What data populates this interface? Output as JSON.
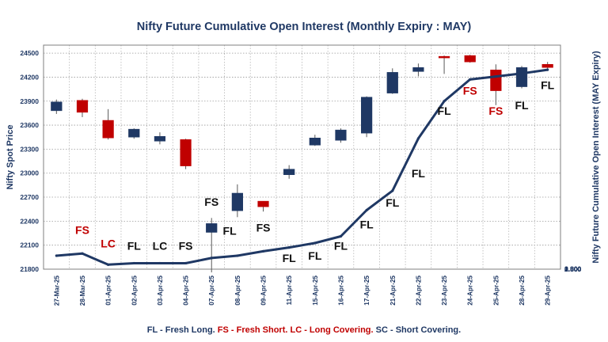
{
  "chart_data": {
    "type": "candlestick+line",
    "title": "Nifty Future Cumulative Open Interest (Monthly Expiry : MAY)",
    "ylabel_left": "Nifty Spot Price",
    "ylabel_right": "Nifty Future Cumulative Open Interest (MAY Expiry)",
    "ylim_left": [
      21800,
      24600
    ],
    "ylim_right": [
      0,
      3000
    ],
    "yticks_left": [
      "21800",
      "22100",
      "22400",
      "22700",
      "23000",
      "23300",
      "23600",
      "23900",
      "24200",
      "24500"
    ],
    "yticks_right": [
      "0.000",
      "0.500",
      "1.000",
      "1.500",
      "2.000",
      "2.500",
      "3.000"
    ],
    "categories": [
      "27-Mar-25",
      "28-Mar-25",
      "01-Apr-25",
      "02-Apr-25",
      "03-Apr-25",
      "04-Apr-25",
      "07-Apr-25",
      "08-Apr-25",
      "09-Apr-25",
      "11-Apr-25",
      "15-Apr-25",
      "16-Apr-25",
      "17-Apr-25",
      "21-Apr-25",
      "22-Apr-25",
      "23-Apr-25",
      "24-Apr-25",
      "25-Apr-25",
      "28-Apr-25",
      "29-Apr-25"
    ],
    "candles": [
      {
        "open": 23780,
        "high": 23920,
        "low": 23740,
        "close": 23890
      },
      {
        "open": 23910,
        "high": 23930,
        "low": 23700,
        "close": 23760
      },
      {
        "open": 23660,
        "high": 23800,
        "low": 23420,
        "close": 23440
      },
      {
        "open": 23450,
        "high": 23560,
        "low": 23430,
        "close": 23550
      },
      {
        "open": 23400,
        "high": 23510,
        "low": 23360,
        "close": 23460
      },
      {
        "open": 23420,
        "high": 23430,
        "low": 23050,
        "close": 23090
      },
      {
        "open": 22260,
        "high": 22440,
        "low": 21760,
        "close": 22370
      },
      {
        "open": 22530,
        "high": 22860,
        "low": 22450,
        "close": 22750
      },
      {
        "open": 22650,
        "high": 22650,
        "low": 22520,
        "close": 22580
      },
      {
        "open": 22980,
        "high": 23100,
        "low": 22930,
        "close": 23050
      },
      {
        "open": 23350,
        "high": 23480,
        "low": 23340,
        "close": 23440
      },
      {
        "open": 23410,
        "high": 23560,
        "low": 23380,
        "close": 23540
      },
      {
        "open": 23500,
        "high": 23960,
        "low": 23450,
        "close": 23950
      },
      {
        "open": 24000,
        "high": 24310,
        "low": 23990,
        "close": 24260
      },
      {
        "open": 24270,
        "high": 24370,
        "low": 24210,
        "close": 24320
      },
      {
        "open": 24460,
        "high": 24470,
        "low": 24240,
        "close": 24450
      },
      {
        "open": 24470,
        "high": 24480,
        "low": 24380,
        "close": 24390
      },
      {
        "open": 24290,
        "high": 24360,
        "low": 23850,
        "close": 24030
      },
      {
        "open": 24080,
        "high": 24340,
        "low": 24060,
        "close": 24320
      },
      {
        "open": 24360,
        "high": 24390,
        "low": 24300,
        "close": 24320
      }
    ],
    "open_interest": [
      180,
      210,
      60,
      80,
      80,
      80,
      150,
      180,
      240,
      290,
      350,
      440,
      790,
      1050,
      1750,
      2250,
      2540,
      2580,
      2620,
      2670
    ],
    "annotations": [
      {
        "label": "FS",
        "index": 1,
        "y": 22240,
        "color": "#c00000"
      },
      {
        "label": "LC",
        "index": 2,
        "y": 22070,
        "color": "#c00000"
      },
      {
        "label": "FL",
        "index": 3,
        "y": 22040,
        "color": "#111111"
      },
      {
        "label": "LC",
        "index": 4,
        "y": 22040,
        "color": "#111111"
      },
      {
        "label": "FS",
        "index": 5,
        "y": 22040,
        "color": "#111111"
      },
      {
        "label": "FS",
        "index": 6,
        "y": 22590,
        "color": "#111111"
      },
      {
        "label": "FL",
        "index": 6.7,
        "y": 22230,
        "color": "#111111"
      },
      {
        "label": "FS",
        "index": 8,
        "y": 22270,
        "color": "#111111"
      },
      {
        "label": "FL",
        "index": 9,
        "y": 21890,
        "color": "#111111"
      },
      {
        "label": "FL",
        "index": 10,
        "y": 21920,
        "color": "#111111"
      },
      {
        "label": "FL",
        "index": 11,
        "y": 22040,
        "color": "#111111"
      },
      {
        "label": "FL",
        "index": 12,
        "y": 22310,
        "color": "#111111"
      },
      {
        "label": "FL",
        "index": 13,
        "y": 22580,
        "color": "#111111"
      },
      {
        "label": "FL",
        "index": 14,
        "y": 22950,
        "color": "#111111"
      },
      {
        "label": "FL",
        "index": 15,
        "y": 23730,
        "color": "#111111"
      },
      {
        "label": "FS",
        "index": 16,
        "y": 23980,
        "color": "#c00000"
      },
      {
        "label": "FS",
        "index": 17,
        "y": 23730,
        "color": "#c00000"
      },
      {
        "label": "FL",
        "index": 18,
        "y": 23800,
        "color": "#111111"
      },
      {
        "label": "FL",
        "index": 19,
        "y": 24050,
        "color": "#111111"
      }
    ],
    "legend": [
      {
        "text": "FL - Fresh Long.",
        "color": "#1f3864"
      },
      {
        "text": " FS - Fresh Short.",
        "color": "#c00000"
      },
      {
        "text": " LC - Long Covering.",
        "color": "#c00000"
      },
      {
        "text": " SC - Short Covering.",
        "color": "#1f3864"
      }
    ],
    "colors": {
      "bull": "#1f3864",
      "bear": "#c00000",
      "oi_line": "#1f3864",
      "axis": "#1f3864"
    },
    "grid": "dotted horizontal and vertical"
  }
}
